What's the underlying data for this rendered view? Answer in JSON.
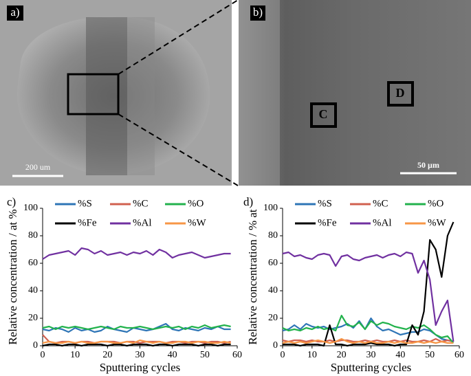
{
  "images": [
    {
      "label": "a)",
      "scale_bar": "200 um"
    },
    {
      "label": "b)",
      "scale_bar": "50 µm",
      "regions": [
        "C",
        "D"
      ]
    }
  ],
  "chart_data": [
    {
      "type": "line",
      "label": "c)",
      "x_label": "Sputtering cycles",
      "y_label": "Relative concentration / at %",
      "x": [
        0,
        2,
        4,
        6,
        8,
        10,
        12,
        14,
        16,
        18,
        20,
        22,
        24,
        26,
        28,
        30,
        32,
        34,
        36,
        38,
        40,
        42,
        44,
        46,
        48,
        50,
        52,
        54,
        56,
        58
      ],
      "xlim": [
        0,
        60
      ],
      "xticks": [
        0,
        10,
        20,
        30,
        40,
        50,
        60
      ],
      "ylim": [
        0,
        100
      ],
      "yticks": [
        0,
        20,
        40,
        60,
        80,
        100
      ],
      "legend": "top",
      "series": [
        {
          "name": "%S",
          "color": "#2e75b6",
          "values": [
            12,
            11,
            13,
            12,
            10,
            13,
            11,
            12,
            10,
            11,
            14,
            12,
            11,
            10,
            13,
            12,
            11,
            12,
            14,
            16,
            12,
            11,
            13,
            12,
            11,
            13,
            12,
            14,
            12,
            12
          ]
        },
        {
          "name": "%C",
          "color": "#d0604f",
          "values": [
            8,
            3,
            2,
            3,
            3,
            2,
            3,
            3,
            2,
            3,
            3,
            3,
            2,
            3,
            3,
            2,
            3,
            3,
            3,
            2,
            3,
            3,
            2,
            3,
            3,
            2,
            3,
            3,
            2,
            3
          ]
        },
        {
          "name": "%O",
          "color": "#22b24c",
          "values": [
            13,
            14,
            12,
            14,
            13,
            14,
            13,
            12,
            13,
            14,
            13,
            12,
            14,
            13,
            13,
            14,
            13,
            12,
            13,
            14,
            13,
            14,
            12,
            14,
            13,
            15,
            13,
            14,
            15,
            14
          ]
        },
        {
          "name": "%Fe",
          "color": "#000000",
          "values": [
            0,
            1,
            1,
            0,
            1,
            1,
            0,
            1,
            1,
            1,
            0,
            1,
            1,
            0,
            1,
            1,
            1,
            0,
            1,
            1,
            0,
            1,
            1,
            1,
            0,
            1,
            1,
            0,
            1,
            1
          ]
        },
        {
          "name": "%Al",
          "color": "#7030a0",
          "values": [
            63,
            66,
            67,
            68,
            69,
            66,
            71,
            70,
            67,
            69,
            66,
            67,
            68,
            66,
            68,
            67,
            69,
            66,
            70,
            68,
            64,
            66,
            67,
            68,
            66,
            64,
            65,
            66,
            67,
            67
          ]
        },
        {
          "name": "%W",
          "color": "#f79646",
          "values": [
            2,
            3,
            2,
            2,
            3,
            2,
            3,
            2,
            2,
            3,
            3,
            2,
            2,
            3,
            2,
            4,
            3,
            2,
            3,
            2,
            2,
            3,
            3,
            2,
            3,
            3,
            2,
            2,
            3,
            2
          ]
        }
      ]
    },
    {
      "type": "line",
      "label": "d)",
      "x_label": "Sputtering cycles",
      "y_label": "Relative concentration / % at",
      "x": [
        0,
        2,
        4,
        6,
        8,
        10,
        12,
        14,
        16,
        18,
        20,
        22,
        24,
        26,
        28,
        30,
        32,
        34,
        36,
        38,
        40,
        42,
        44,
        46,
        48,
        50,
        52,
        54,
        56,
        58
      ],
      "xlim": [
        0,
        60
      ],
      "xticks": [
        0,
        10,
        20,
        30,
        40,
        50,
        60
      ],
      "ylim": [
        0,
        100
      ],
      "yticks": [
        0,
        20,
        40,
        60,
        80,
        100
      ],
      "legend": "top",
      "series": [
        {
          "name": "%S",
          "color": "#2e75b6",
          "values": [
            11,
            12,
            15,
            12,
            16,
            14,
            13,
            14,
            12,
            13,
            14,
            16,
            13,
            18,
            12,
            20,
            14,
            11,
            12,
            10,
            8,
            9,
            10,
            10,
            12,
            11,
            8,
            5,
            4,
            3
          ]
        },
        {
          "name": "%C",
          "color": "#d0604f",
          "values": [
            4,
            3,
            4,
            4,
            3,
            4,
            3,
            3,
            4,
            3,
            4,
            4,
            3,
            3,
            4,
            3,
            4,
            3,
            3,
            4,
            3,
            4,
            3,
            3,
            4,
            3,
            5,
            3,
            4,
            3
          ]
        },
        {
          "name": "%O",
          "color": "#22b24c",
          "values": [
            13,
            11,
            12,
            11,
            13,
            12,
            14,
            12,
            13,
            11,
            22,
            15,
            14,
            17,
            12,
            18,
            15,
            17,
            16,
            14,
            13,
            12,
            14,
            13,
            15,
            12,
            8,
            6,
            7,
            2
          ]
        },
        {
          "name": "%Fe",
          "color": "#000000",
          "values": [
            1,
            1,
            1,
            0,
            1,
            1,
            1,
            0,
            15,
            1,
            1,
            0,
            1,
            1,
            1,
            2,
            1,
            1,
            1,
            0,
            1,
            1,
            15,
            8,
            25,
            77,
            70,
            50,
            80,
            90
          ]
        },
        {
          "name": "%Al",
          "color": "#7030a0",
          "values": [
            67,
            68,
            65,
            66,
            64,
            63,
            66,
            67,
            66,
            58,
            65,
            66,
            63,
            62,
            64,
            65,
            66,
            64,
            66,
            67,
            65,
            68,
            67,
            53,
            62,
            48,
            15,
            25,
            33,
            3
          ]
        },
        {
          "name": "%W",
          "color": "#f79646",
          "values": [
            2,
            3,
            2,
            3,
            2,
            3,
            4,
            3,
            2,
            3,
            5,
            3,
            2,
            3,
            2,
            3,
            2,
            2,
            3,
            2,
            3,
            2,
            2,
            3,
            2,
            3,
            2,
            3,
            2,
            2
          ]
        }
      ]
    }
  ]
}
